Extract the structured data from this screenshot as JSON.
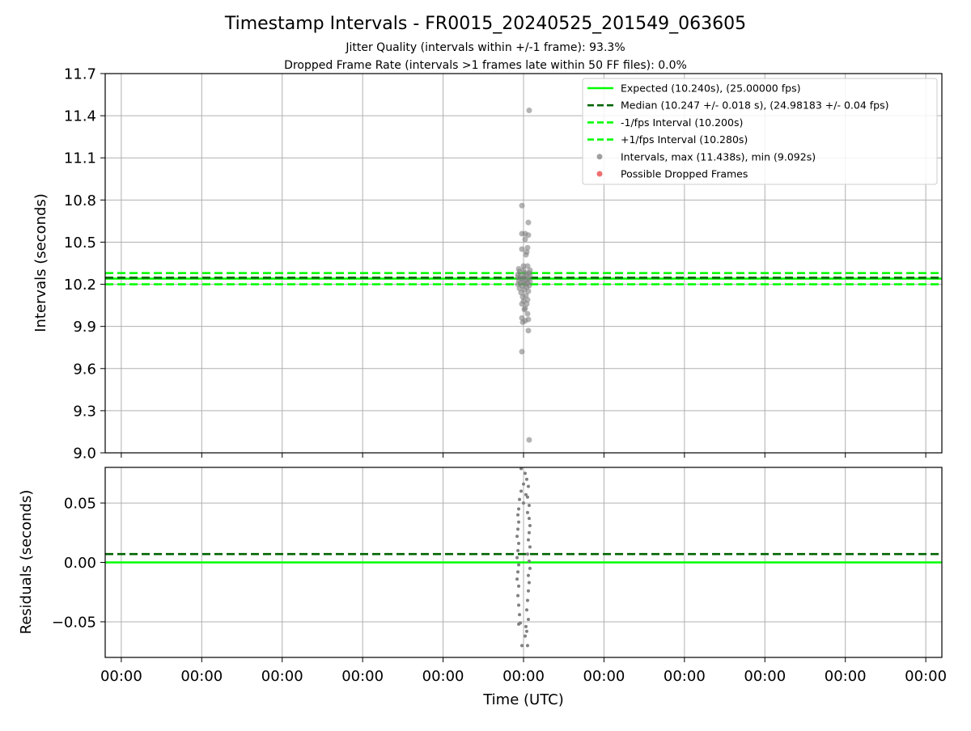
{
  "figure": {
    "title": "Timestamp Intervals - FR0015_20240525_201549_063605",
    "subtitle_1": "Jitter Quality (intervals within +/-1 frame): 93.3%",
    "subtitle_2": "Dropped Frame Rate (intervals >1 frames late within 50 FF files): 0.0%"
  },
  "colors": {
    "expected": "#00ff00",
    "median": "#006400",
    "interval_lines": "#00ff00",
    "points": "#808080",
    "dropped": "#e84040",
    "grid": "#b0b0b0"
  },
  "chart_data": [
    {
      "type": "scatter",
      "name": "intervals-panel",
      "ylabel": "Intervals (seconds)",
      "xlabel": "",
      "ylim": [
        9.0,
        11.7
      ],
      "yticks": [
        "9.0",
        "9.3",
        "9.6",
        "9.9",
        "10.2",
        "10.5",
        "10.8",
        "11.1",
        "11.4",
        "11.7"
      ],
      "ytick_values": [
        9.0,
        9.3,
        9.6,
        9.9,
        10.2,
        10.5,
        10.8,
        11.1,
        11.4,
        11.7
      ],
      "xlim": [
        -5.2,
        5.2
      ],
      "x_tick_values": [
        -5,
        -4,
        -3,
        -2,
        -1,
        0,
        1,
        2,
        3,
        4,
        5
      ],
      "grid": true,
      "legend_position": "top-right",
      "hlines": [
        {
          "name": "Expected (10.240s), (25.00000 fps)",
          "y": 10.24,
          "style": "solid",
          "color": "#00ff00"
        },
        {
          "name": "Median (10.247 +/- 0.018 s), (24.98183 +/- 0.04 fps)",
          "y": 10.247,
          "style": "dashed",
          "color": "#006400"
        },
        {
          "name": "-1/fps Interval (10.200s)",
          "y": 10.2,
          "style": "dashed",
          "color": "#00ff00"
        },
        {
          "name": "+1/fps Interval (10.280s)",
          "y": 10.28,
          "style": "dashed",
          "color": "#00ff00"
        }
      ],
      "series": [
        {
          "name": "Intervals, max (11.438s), min (9.092s)",
          "color": "#808080",
          "points": [
            [
              0.07,
              11.438
            ],
            [
              0.07,
              9.092
            ],
            [
              -0.02,
              10.76
            ],
            [
              0.06,
              10.64
            ],
            [
              -0.02,
              10.56
            ],
            [
              0.02,
              10.56
            ],
            [
              0.06,
              10.55
            ],
            [
              0.02,
              10.52
            ],
            [
              0.05,
              10.46
            ],
            [
              -0.02,
              10.45
            ],
            [
              0.04,
              10.43
            ],
            [
              0.03,
              10.41
            ],
            [
              0.0,
              10.33
            ],
            [
              0.05,
              10.33
            ],
            [
              -0.06,
              10.31
            ],
            [
              0.08,
              10.3
            ],
            [
              0.0,
              10.3
            ],
            [
              -0.05,
              10.29
            ],
            [
              0.07,
              10.28
            ],
            [
              0.02,
              10.28
            ],
            [
              -0.07,
              10.27
            ],
            [
              0.04,
              10.27
            ],
            [
              0.08,
              10.26
            ],
            [
              -0.03,
              10.26
            ],
            [
              0.01,
              10.25
            ],
            [
              -0.07,
              10.25
            ],
            [
              0.06,
              10.24
            ],
            [
              -0.02,
              10.24
            ],
            [
              0.03,
              10.23
            ],
            [
              -0.06,
              10.23
            ],
            [
              0.08,
              10.22
            ],
            [
              0.0,
              10.22
            ],
            [
              -0.04,
              10.21
            ],
            [
              0.05,
              10.21
            ],
            [
              0.02,
              10.2
            ],
            [
              -0.07,
              10.2
            ],
            [
              0.07,
              10.19
            ],
            [
              -0.02,
              10.19
            ],
            [
              0.04,
              10.18
            ],
            [
              -0.05,
              10.17
            ],
            [
              0.01,
              10.16
            ],
            [
              0.06,
              10.15
            ],
            [
              -0.03,
              10.14
            ],
            [
              0.03,
              10.12
            ],
            [
              -0.01,
              10.11
            ],
            [
              0.05,
              10.09
            ],
            [
              0.0,
              10.08
            ],
            [
              -0.02,
              10.06
            ],
            [
              0.04,
              10.06
            ],
            [
              0.02,
              10.03
            ],
            [
              0.01,
              10.02
            ],
            [
              -0.02,
              9.96
            ],
            [
              0.05,
              9.99
            ],
            [
              0.06,
              9.95
            ],
            [
              0.02,
              9.94
            ],
            [
              -0.01,
              9.93
            ],
            [
              0.06,
              9.87
            ],
            [
              -0.02,
              9.72
            ]
          ]
        },
        {
          "name": "Possible Dropped Frames",
          "color": "#e84040",
          "points": []
        }
      ]
    },
    {
      "type": "scatter",
      "name": "residuals-panel",
      "ylabel": "Residuals (seconds)",
      "xlabel": "Time (UTC)",
      "ylim": [
        -0.08,
        0.08
      ],
      "yticks": [
        "−0.05",
        "0.00",
        "0.05"
      ],
      "ytick_values": [
        -0.05,
        0.0,
        0.05
      ],
      "xlim": [
        -5.2,
        5.2
      ],
      "x_tick_values": [
        -5,
        -4,
        -3,
        -2,
        -1,
        0,
        1,
        2,
        3,
        4,
        5
      ],
      "xticks": [
        "00:00",
        "00:00",
        "00:00",
        "00:00",
        "00:00",
        "00:00",
        "00:00",
        "00:00",
        "00:00",
        "00:00",
        "00:00"
      ],
      "grid": true,
      "hlines": [
        {
          "name": "Expected",
          "y": 0.0,
          "style": "solid",
          "color": "#00ff00"
        },
        {
          "name": "Median",
          "y": 0.007,
          "style": "dashed",
          "color": "#006400"
        }
      ],
      "series": [
        {
          "name": "Residuals",
          "color": "#808080",
          "points": [
            [
              -0.03,
              0.079
            ],
            [
              0.02,
              0.075
            ],
            [
              0.04,
              0.07
            ],
            [
              0.0,
              0.066
            ],
            [
              0.06,
              0.064
            ],
            [
              -0.03,
              0.06
            ],
            [
              0.03,
              0.057
            ],
            [
              0.05,
              0.055
            ],
            [
              -0.05,
              0.053
            ],
            [
              0.0,
              0.05
            ],
            [
              0.07,
              0.048
            ],
            [
              -0.06,
              0.045
            ],
            [
              0.05,
              0.042
            ],
            [
              -0.07,
              0.04
            ],
            [
              0.07,
              0.037
            ],
            [
              -0.06,
              0.034
            ],
            [
              0.08,
              0.031
            ],
            [
              -0.07,
              0.028
            ],
            [
              0.07,
              0.025
            ],
            [
              -0.08,
              0.022
            ],
            [
              0.06,
              0.019
            ],
            [
              -0.06,
              0.016
            ],
            [
              0.08,
              0.013
            ],
            [
              -0.07,
              0.01
            ],
            [
              0.05,
              0.007
            ],
            [
              -0.08,
              0.004
            ],
            [
              0.07,
              0.001
            ],
            [
              -0.06,
              -0.002
            ],
            [
              0.08,
              -0.005
            ],
            [
              -0.07,
              -0.008
            ],
            [
              0.06,
              -0.011
            ],
            [
              -0.08,
              -0.014
            ],
            [
              0.07,
              -0.017
            ],
            [
              -0.06,
              -0.02
            ],
            [
              0.06,
              -0.024
            ],
            [
              -0.07,
              -0.028
            ],
            [
              0.05,
              -0.032
            ],
            [
              -0.06,
              -0.036
            ],
            [
              0.04,
              -0.04
            ],
            [
              -0.05,
              -0.044
            ],
            [
              0.06,
              -0.048
            ],
            [
              -0.04,
              -0.051
            ],
            [
              0.03,
              -0.054
            ],
            [
              -0.06,
              -0.052
            ],
            [
              0.04,
              -0.058
            ],
            [
              0.02,
              -0.062
            ],
            [
              -0.02,
              -0.07
            ],
            [
              0.05,
              -0.07
            ]
          ]
        }
      ]
    }
  ]
}
